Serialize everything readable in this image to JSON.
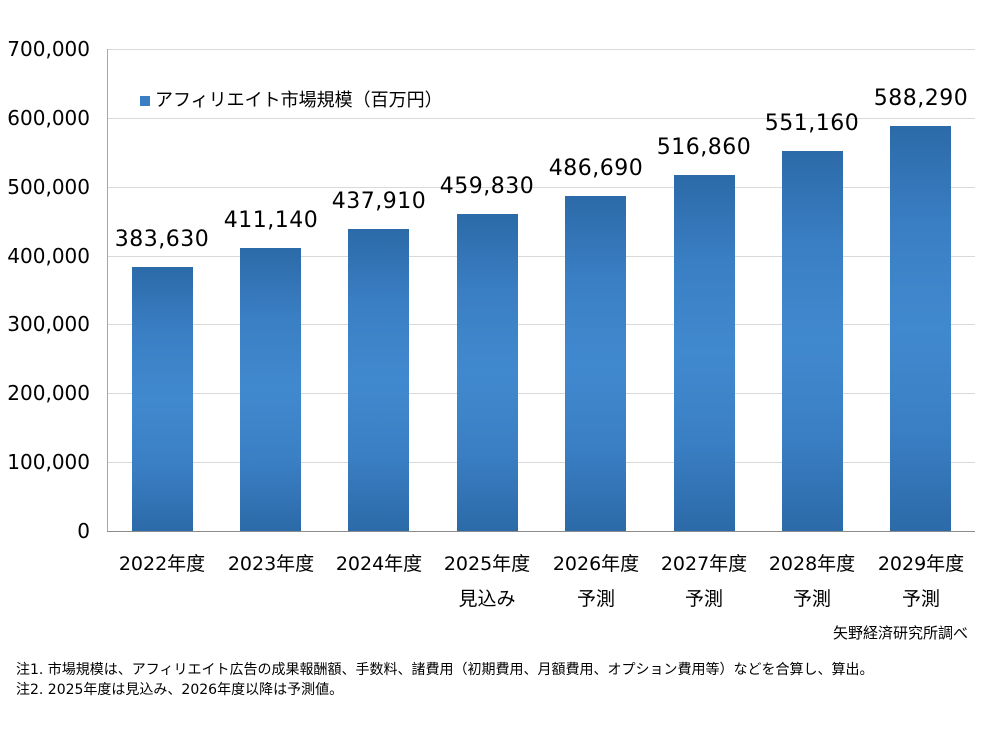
{
  "chart_data": {
    "type": "bar",
    "title": "",
    "xlabel": "",
    "ylabel": "",
    "ylim": [
      0,
      700000
    ],
    "yticks": [
      "0",
      "100,000",
      "200,000",
      "300,000",
      "400,000",
      "500,000",
      "600,000",
      "700,000"
    ],
    "grid": true,
    "legend_position": "top-left inside",
    "categories": [
      "2022年度",
      "2023年度",
      "2024年度",
      "2025年度 見込み",
      "2026年度 予測",
      "2027年度 予測",
      "2028年度 予測",
      "2029年度 予測"
    ],
    "series": [
      {
        "name": "アフィリエイト市場規模（百万円）",
        "color": "#3a7fc4",
        "values": [
          383630,
          411140,
          437910,
          459830,
          486690,
          516860,
          551160,
          588290
        ]
      }
    ],
    "data_labels": [
      "383,630",
      "411,140",
      "437,910",
      "459,830",
      "486,690",
      "516,860",
      "551,160",
      "588,290"
    ]
  },
  "legend": {
    "label": "アフィリエイト市場規模（百万円）"
  },
  "x_labels": [
    {
      "line1": "2022年度",
      "line2": ""
    },
    {
      "line1": "2023年度",
      "line2": ""
    },
    {
      "line1": "2024年度",
      "line2": ""
    },
    {
      "line1": "2025年度",
      "line2": "見込み"
    },
    {
      "line1": "2026年度",
      "line2": "予測"
    },
    {
      "line1": "2027年度",
      "line2": "予測"
    },
    {
      "line1": "2028年度",
      "line2": "予測"
    },
    {
      "line1": "2029年度",
      "line2": "予測"
    }
  ],
  "source": "矢野経済研究所調べ",
  "notes": [
    "注1.  市場規模は、アフィリエイト広告の成果報酬額、手数料、諸費用（初期費用、月額費用、オプション費用等）などを合算し、算出。",
    "注2.  2025年度は見込み、2026年度以降は予測値。"
  ]
}
